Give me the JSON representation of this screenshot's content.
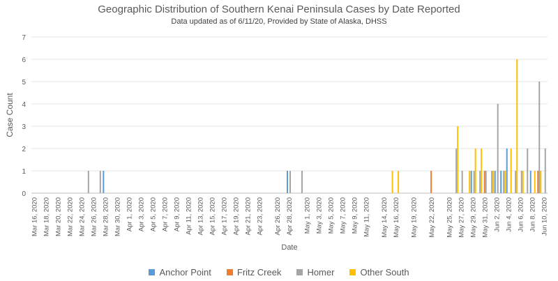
{
  "chart_data": {
    "type": "bar",
    "title": "Geographic Distribution of Southern Kenai Peninsula Cases by Date Reported",
    "subtitle": "Data updated as of 6/11/20, Provided by State of Alaska, DHSS",
    "xlabel": "Date",
    "ylabel": "Case Count",
    "ylim": [
      0,
      7
    ],
    "yticks": [
      0,
      1,
      2,
      3,
      4,
      5,
      6,
      7
    ],
    "grid": true,
    "legend_position": "bottom",
    "date_start": "2020-03-16",
    "date_end": "2020-06-10",
    "tick_labels": [
      "Mar 16, 2020",
      "Mar 18, 2020",
      "Mar 20, 2020",
      "Mar 22, 2020",
      "Mar 24, 2020",
      "Mar 26, 2020",
      "Mar 28, 2020",
      "Mar 30, 2020",
      "Apr 1, 2020",
      "Apr 3, 2020",
      "Apr 5, 2020",
      "Apr 7, 2020",
      "Apr 9, 2020",
      "Apr 11, 2020",
      "Apr 13, 2020",
      "Apr 15, 2020",
      "Apr 17, 2020",
      "Apr 19, 2020",
      "Apr 21, 2020",
      "Apr 23, 2020",
      "Apr 26, 2020",
      "Apr 28, 2020",
      "May 1, 2020",
      "May 3, 2020",
      "May 5, 2020",
      "May 7, 2020",
      "May 9, 2020",
      "May 11, 2020",
      "May 14, 2020",
      "May 16, 2020",
      "May 19, 2020",
      "May 22, 2020",
      "May 25, 2020",
      "May 27, 2020",
      "May 29, 2020",
      "May 31, 2020",
      "Jun 2, 2020",
      "Jun 4, 2020",
      "Jun 6, 2020",
      "Jun 8, 2020",
      "Jun 10, 2020"
    ],
    "series": [
      {
        "name": "Anchor Point",
        "color": "#5B9BD5",
        "points": [
          [
            "2020-03-28",
            1
          ],
          [
            "2020-04-28",
            1
          ],
          [
            "2020-05-29",
            1
          ],
          [
            "2020-06-02",
            1
          ],
          [
            "2020-06-03",
            1
          ],
          [
            "2020-06-04",
            2
          ],
          [
            "2020-06-08",
            1
          ]
        ]
      },
      {
        "name": "Fritz Creek",
        "color": "#ED7D31",
        "points": [
          [
            "2020-05-22",
            1
          ],
          [
            "2020-05-31",
            1
          ],
          [
            "2020-06-09",
            1
          ]
        ]
      },
      {
        "name": "Homer",
        "color": "#A5A5A5",
        "points": [
          [
            "2020-03-25",
            1
          ],
          [
            "2020-03-27",
            1
          ],
          [
            "2020-04-28",
            1
          ],
          [
            "2020-04-30",
            1
          ],
          [
            "2020-05-26",
            2
          ],
          [
            "2020-05-27",
            1
          ],
          [
            "2020-05-29",
            1
          ],
          [
            "2020-05-30",
            1
          ],
          [
            "2020-05-31",
            1
          ],
          [
            "2020-06-01",
            1
          ],
          [
            "2020-06-02",
            4
          ],
          [
            "2020-06-03",
            1
          ],
          [
            "2020-06-05",
            1
          ],
          [
            "2020-06-06",
            1
          ],
          [
            "2020-06-07",
            2
          ],
          [
            "2020-06-09",
            5
          ],
          [
            "2020-06-10",
            2
          ]
        ]
      },
      {
        "name": "Other South",
        "color": "#FFC000",
        "points": [
          [
            "2020-05-15",
            1
          ],
          [
            "2020-05-16",
            1
          ],
          [
            "2020-05-26",
            3
          ],
          [
            "2020-05-28",
            1
          ],
          [
            "2020-05-29",
            2
          ],
          [
            "2020-05-30",
            2
          ],
          [
            "2020-06-01",
            1
          ],
          [
            "2020-06-03",
            1
          ],
          [
            "2020-06-04",
            2
          ],
          [
            "2020-06-05",
            6
          ],
          [
            "2020-06-06",
            1
          ],
          [
            "2020-06-08",
            1
          ],
          [
            "2020-06-09",
            1
          ]
        ]
      }
    ]
  }
}
